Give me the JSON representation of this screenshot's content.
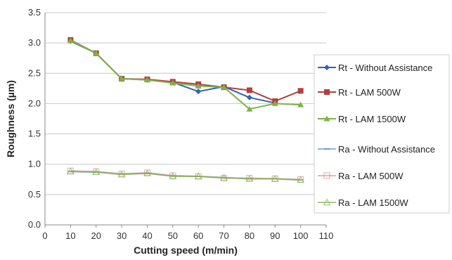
{
  "chart_data": {
    "type": "line",
    "xlabel": "Cutting speed (m/min)",
    "ylabel": "Roughness (µm)",
    "xlim": [
      0,
      110
    ],
    "ylim": [
      0,
      3.5
    ],
    "x_ticks": [
      "0",
      "10",
      "20",
      "30",
      "40",
      "50",
      "60",
      "70",
      "80",
      "90",
      "100",
      "110"
    ],
    "y_ticks": [
      "0.0",
      "0.5",
      "1.0",
      "1.5",
      "2.0",
      "2.5",
      "3.0",
      "3.5"
    ],
    "grid": "horizontal",
    "legend_position": "right",
    "x": [
      10,
      20,
      30,
      40,
      50,
      60,
      70,
      80,
      90,
      100
    ],
    "series": [
      {
        "name": "Rt - Without Assistance",
        "color": "#2f63b3",
        "marker": "diamond",
        "style": "solid",
        "values": [
          3.03,
          2.83,
          2.41,
          2.39,
          2.35,
          2.2,
          2.28,
          2.1,
          2.01,
          null
        ]
      },
      {
        "name": "Rt - LAM 500W",
        "color": "#b0413e",
        "marker": "square",
        "style": "solid",
        "values": [
          3.05,
          2.83,
          2.41,
          2.4,
          2.36,
          2.32,
          2.27,
          2.22,
          2.04,
          2.21
        ]
      },
      {
        "name": "Rt - LAM 1500W",
        "color": "#7fb24a",
        "marker": "triangle",
        "style": "solid",
        "values": [
          3.04,
          2.83,
          2.41,
          2.39,
          2.34,
          2.29,
          2.27,
          1.91,
          2.0,
          1.98
        ]
      },
      {
        "name": "Ra - Without Assistance",
        "color": "#4f8fd6",
        "marker": "dash",
        "style": "pale",
        "values": [
          0.88,
          0.87,
          0.84,
          0.85,
          0.81,
          0.8,
          0.78,
          0.76,
          0.76,
          0.74
        ]
      },
      {
        "name": "Ra - LAM 500W",
        "color": "#d9908e",
        "marker": "hollow-square",
        "style": "pale",
        "values": [
          0.89,
          0.88,
          0.84,
          0.86,
          0.81,
          0.8,
          0.77,
          0.77,
          0.76,
          0.75
        ]
      },
      {
        "name": "Ra - LAM 1500W",
        "color": "#7fb24a",
        "marker": "hollow-triangle",
        "style": "pale",
        "values": [
          0.88,
          0.87,
          0.83,
          0.85,
          0.8,
          0.8,
          0.78,
          0.76,
          0.76,
          0.74
        ]
      }
    ]
  }
}
